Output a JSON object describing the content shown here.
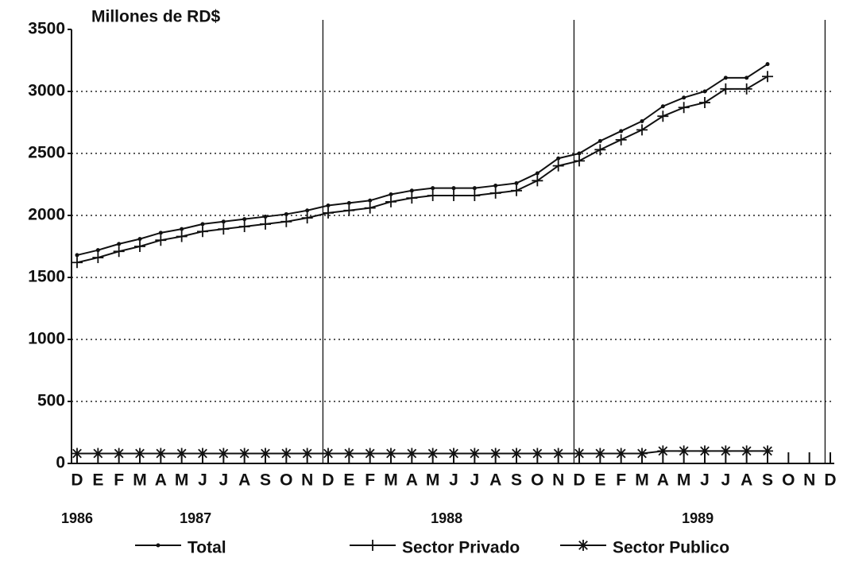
{
  "chart_data": {
    "type": "line",
    "title": "Millones de RD$",
    "categories": [
      "D",
      "E",
      "F",
      "M",
      "A",
      "M",
      "J",
      "J",
      "A",
      "S",
      "O",
      "N",
      "D",
      "E",
      "F",
      "M",
      "A",
      "M",
      "J",
      "J",
      "A",
      "S",
      "O",
      "N",
      "D",
      "E",
      "F",
      "M",
      "A",
      "M",
      "J",
      "J",
      "A",
      "S",
      "O",
      "N",
      "D"
    ],
    "years": [
      "1986",
      "1987",
      "1988",
      "1989"
    ],
    "series": [
      {
        "name": "Total",
        "color": "#111111",
        "marker": "dot",
        "values": [
          1680,
          1720,
          1770,
          1810,
          1860,
          1890,
          1930,
          1950,
          1970,
          1990,
          2010,
          2040,
          2080,
          2100,
          2120,
          2170,
          2200,
          2220,
          2220,
          2220,
          2240,
          2260,
          2340,
          2460,
          2500,
          2600,
          2680,
          2760,
          2880,
          2950,
          3000,
          3110,
          3110,
          3220,
          null,
          null,
          null
        ]
      },
      {
        "name": "Sector Privado",
        "color": "#111111",
        "marker": "plus",
        "values": [
          1620,
          1660,
          1710,
          1750,
          1800,
          1830,
          1870,
          1890,
          1910,
          1930,
          1950,
          1980,
          2020,
          2040,
          2060,
          2110,
          2140,
          2160,
          2160,
          2160,
          2180,
          2200,
          2280,
          2400,
          2440,
          2530,
          2610,
          2690,
          2800,
          2870,
          2910,
          3020,
          3020,
          3120,
          null,
          null,
          null
        ]
      },
      {
        "name": "Sector Publico",
        "color": "#111111",
        "marker": "star",
        "values": [
          80,
          80,
          80,
          80,
          80,
          80,
          80,
          80,
          80,
          80,
          80,
          80,
          80,
          80,
          80,
          80,
          80,
          80,
          80,
          80,
          80,
          80,
          80,
          80,
          80,
          80,
          80,
          80,
          100,
          100,
          100,
          100,
          100,
          100,
          null,
          null,
          null
        ]
      }
    ],
    "ylim": [
      0,
      3500
    ],
    "yticks": [
      0,
      500,
      1000,
      1500,
      2000,
      2500,
      3000,
      3500
    ],
    "grid": true,
    "legend": "bottom"
  }
}
